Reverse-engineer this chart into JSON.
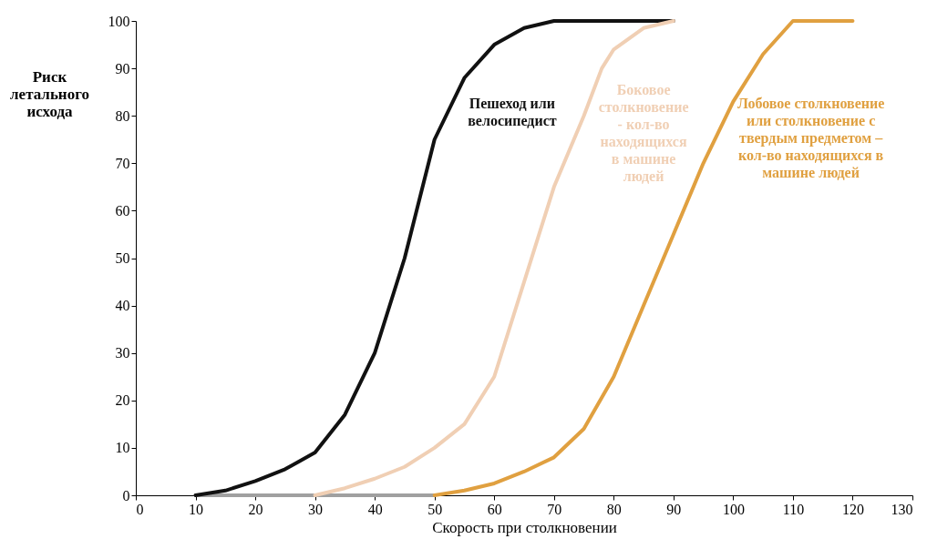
{
  "chart_data": {
    "type": "line",
    "xlabel": "Скорость при столкновении",
    "ylabel": "Риск летального исхода",
    "xlim": [
      0,
      130
    ],
    "xticks": [
      0,
      10,
      20,
      30,
      40,
      50,
      60,
      70,
      80,
      90,
      100,
      110,
      120,
      130
    ],
    "ylim": [
      0,
      100
    ],
    "yticks": [
      0,
      10,
      20,
      30,
      40,
      50,
      60,
      70,
      80,
      90,
      100
    ],
    "grid": false,
    "legend": false,
    "marker": "none",
    "line_style": "solid",
    "series": [
      {
        "color": "#a0a0a0",
        "x": [
          10,
          50
        ],
        "values": [
          0,
          0
        ]
      },
      {
        "name": "Пешеход или велосипедист",
        "color": "#111111",
        "x": [
          10,
          15,
          20,
          25,
          30,
          35,
          40,
          45,
          50,
          55,
          60,
          65,
          70,
          75,
          80,
          90
        ],
        "values": [
          0,
          1,
          3,
          5.5,
          9,
          17,
          30,
          50,
          75,
          88,
          95,
          98.5,
          100,
          100,
          100,
          100
        ]
      },
      {
        "name": "Боковое столкновение - кол-во находящихся в машине людей",
        "color": "#f0cfb4",
        "x": [
          30,
          35,
          40,
          45,
          50,
          55,
          60,
          65,
          70,
          75,
          78,
          80,
          85,
          90
        ],
        "values": [
          0,
          1.5,
          3.5,
          6,
          10,
          15,
          25,
          45,
          65,
          80,
          90,
          94,
          98.5,
          100
        ]
      },
      {
        "name": "Лобовое столкновение или столкновение с твердым предметом – кол-во находящихся в машине людей",
        "color": "#e0a040",
        "x": [
          50,
          55,
          60,
          65,
          70,
          75,
          80,
          85,
          90,
          95,
          100,
          105,
          110,
          120
        ],
        "values": [
          0,
          1,
          2.5,
          5,
          8,
          14,
          25,
          40,
          55,
          70,
          83,
          93,
          100,
          100
        ]
      }
    ]
  }
}
